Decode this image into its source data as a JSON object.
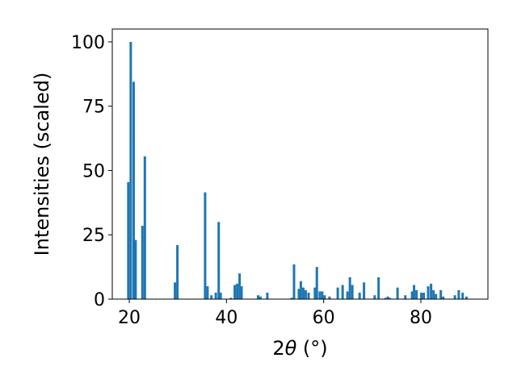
{
  "chart_data": {
    "type": "bar",
    "xlabel": "2θ (°)",
    "xlabel_parts": {
      "prefix": "2",
      "theta": "θ",
      "unit": " (°)"
    },
    "ylabel": "Intensities (scaled)",
    "xlim": [
      16.5,
      93.8
    ],
    "ylim": [
      0,
      105
    ],
    "x_ticks": [
      20,
      40,
      60,
      80
    ],
    "y_ticks": [
      0,
      25,
      50,
      75,
      100
    ],
    "bar_color": "#1f77b4",
    "grid": false,
    "bar_width": 0.5,
    "x": [
      19.8,
      20.3,
      20.9,
      21.3,
      22.7,
      23.2,
      29.4,
      29.9,
      35.6,
      36.1,
      36.9,
      37.8,
      38.4,
      38.8,
      40.9,
      41.7,
      42.2,
      42.7,
      43.1,
      46.5,
      47.0,
      48.4,
      53.4,
      53.9,
      54.9,
      55.3,
      55.8,
      56.3,
      56.9,
      58.2,
      58.6,
      59.2,
      59.7,
      60.2,
      61.2,
      62.9,
      63.9,
      64.9,
      65.4,
      65.9,
      67.4,
      68.3,
      70.5,
      71.3,
      72.7,
      73.2,
      73.6,
      75.2,
      76.8,
      78.2,
      78.6,
      79.1,
      80.1,
      80.6,
      81.5,
      82.1,
      82.6,
      83.1,
      84.1,
      84.6,
      87.0,
      87.8,
      88.6,
      89.4
    ],
    "values": [
      45.5,
      100,
      84.5,
      23.0,
      28.5,
      55.5,
      6.5,
      21.0,
      41.5,
      5.0,
      1.5,
      2.5,
      30.0,
      2.5,
      0.5,
      5.5,
      6.0,
      10.0,
      5.0,
      1.5,
      1.0,
      2.5,
      0.5,
      13.5,
      4.0,
      7.0,
      4.5,
      3.5,
      2.5,
      4.5,
      12.5,
      3.0,
      3.0,
      1.5,
      1.0,
      4.5,
      5.5,
      3.0,
      8.5,
      5.5,
      2.5,
      6.5,
      1.5,
      8.5,
      0.5,
      1.0,
      0.5,
      4.5,
      1.5,
      3.0,
      5.5,
      3.5,
      2.5,
      2.5,
      5.0,
      6.0,
      3.5,
      2.0,
      3.5,
      1.0,
      1.5,
      3.5,
      2.5,
      1.0
    ]
  }
}
